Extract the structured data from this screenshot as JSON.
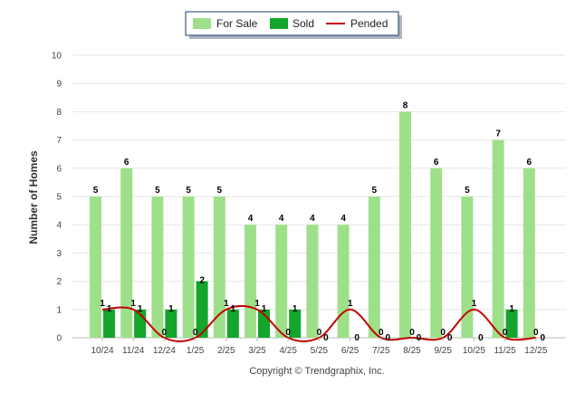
{
  "chart_data": {
    "type": "bar",
    "title": "",
    "xlabel": "",
    "ylabel": "Number of Homes",
    "ylim": [
      0,
      10
    ],
    "yticks": [
      0,
      1,
      2,
      3,
      4,
      5,
      6,
      7,
      8,
      9,
      10
    ],
    "grid": true,
    "legend_position": "top-center",
    "categories": [
      "10/24",
      "11/24",
      "12/24",
      "1/25",
      "2/25",
      "3/25",
      "4/25",
      "5/25",
      "6/25",
      "7/25",
      "8/25",
      "9/25",
      "10/25",
      "11/25",
      "12/25"
    ],
    "series": [
      {
        "name": "For Sale",
        "type": "bar",
        "color": "#9ee08a",
        "values": [
          5,
          6,
          5,
          5,
          5,
          4,
          4,
          4,
          4,
          5,
          8,
          6,
          5,
          7,
          6
        ]
      },
      {
        "name": "Sold",
        "type": "bar",
        "color": "#13a52c",
        "values": [
          1,
          1,
          1,
          2,
          1,
          1,
          1,
          0,
          0,
          0,
          0,
          0,
          0,
          1,
          0
        ]
      },
      {
        "name": "Pended",
        "type": "line",
        "color": "#c40000",
        "values": [
          1,
          1,
          0,
          0,
          1,
          1,
          0,
          0,
          1,
          0,
          0,
          0,
          1,
          0,
          0
        ]
      }
    ]
  },
  "footer": {
    "copyright": "Copyright © Trendgraphix, Inc."
  }
}
